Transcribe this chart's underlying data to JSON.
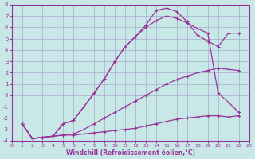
{
  "xlabel": "Windchill (Refroidissement éolien,°C)",
  "bg_color": "#c8e8e8",
  "grid_color": "#aaaacc",
  "line_color": "#993399",
  "xlim": [
    0,
    23
  ],
  "ylim": [
    -4,
    8
  ],
  "xticks": [
    0,
    1,
    2,
    3,
    4,
    5,
    6,
    7,
    8,
    9,
    10,
    11,
    12,
    13,
    14,
    15,
    16,
    17,
    18,
    19,
    20,
    21,
    22,
    23
  ],
  "yticks": [
    -4,
    -3,
    -2,
    -1,
    0,
    1,
    2,
    3,
    4,
    5,
    6,
    7,
    8
  ],
  "curve1_x": [
    1,
    2,
    3,
    4,
    5,
    6,
    7,
    8,
    9,
    10,
    11,
    12,
    13,
    14,
    15,
    16,
    17,
    18,
    19,
    20,
    21,
    22
  ],
  "curve1_y": [
    -2.5,
    -3.8,
    -3.7,
    -3.6,
    -3.5,
    -3.5,
    -3.4,
    -3.3,
    -3.2,
    -3.1,
    -3.0,
    -2.9,
    -2.7,
    -2.5,
    -2.3,
    -2.1,
    -2.0,
    -1.9,
    -1.8,
    -1.8,
    -1.9,
    -1.8
  ],
  "curve2_x": [
    1,
    2,
    3,
    4,
    5,
    6,
    7,
    8,
    9,
    10,
    11,
    12,
    13,
    14,
    15,
    16,
    17,
    18,
    19,
    20,
    21,
    22
  ],
  "curve2_y": [
    -2.5,
    -3.8,
    -3.7,
    -3.6,
    -3.5,
    -3.4,
    -3.0,
    -2.5,
    -2.0,
    -1.5,
    -1.0,
    -0.5,
    0.0,
    0.5,
    1.0,
    1.4,
    1.7,
    2.0,
    2.2,
    2.4,
    2.3,
    2.2
  ],
  "curve3_x": [
    1,
    2,
    3,
    4,
    5,
    6,
    7,
    8,
    9,
    10,
    11,
    12,
    13,
    14,
    15,
    16,
    17,
    18,
    19,
    20,
    21,
    22
  ],
  "curve3_y": [
    -2.5,
    -3.8,
    -3.7,
    -3.6,
    -2.5,
    -2.2,
    -1.0,
    0.2,
    1.5,
    3.0,
    4.3,
    5.2,
    6.0,
    6.6,
    7.0,
    6.8,
    6.4,
    5.9,
    5.5,
    0.2,
    -0.6,
    -1.5
  ],
  "curve4_x": [
    1,
    2,
    3,
    4,
    5,
    6,
    7,
    8,
    9,
    10,
    11,
    12,
    13,
    14,
    15,
    16,
    17,
    18,
    19,
    20,
    21,
    22
  ],
  "curve4_y": [
    -2.5,
    -3.8,
    -3.7,
    -3.6,
    -2.5,
    -2.2,
    -1.0,
    0.2,
    1.5,
    3.0,
    4.3,
    5.2,
    6.2,
    7.5,
    7.7,
    7.4,
    6.5,
    5.3,
    4.8,
    4.3,
    5.5,
    5.5
  ]
}
